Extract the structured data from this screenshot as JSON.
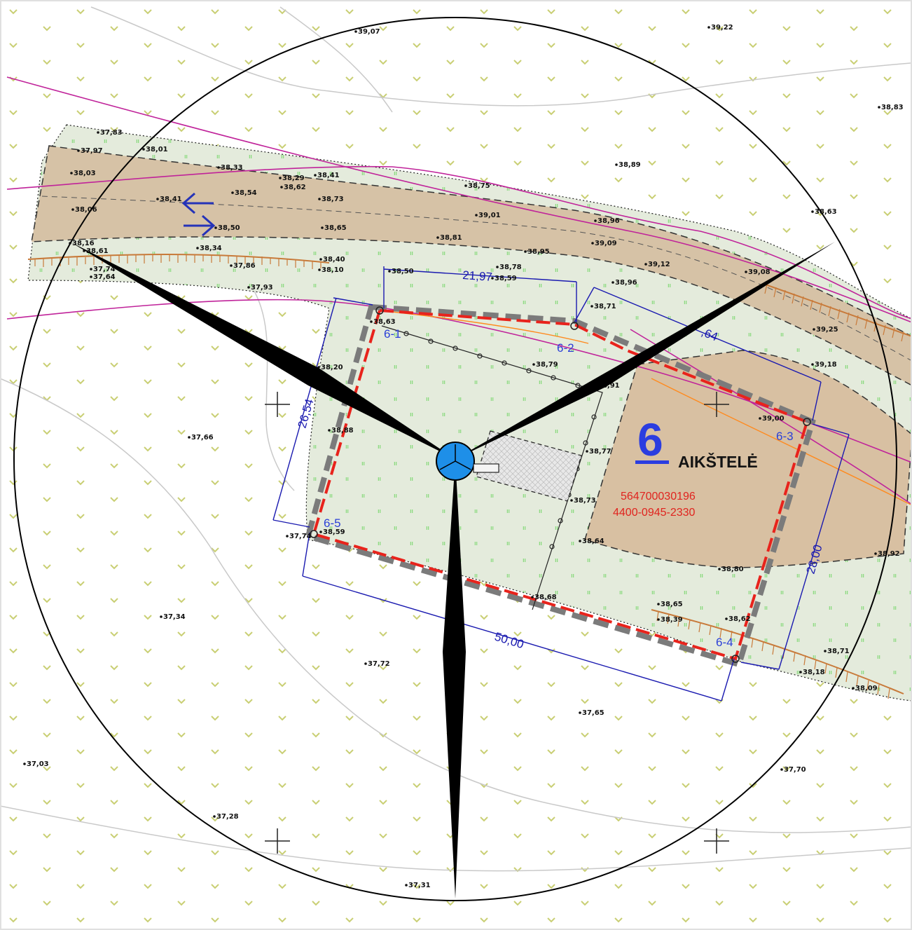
{
  "plot": {
    "number": "6",
    "name": "AIKŠTELĖ",
    "cadastral_number": "564700030196",
    "unique_number": "4400-0945-2330"
  },
  "dimensions": {
    "top": "21,97",
    "left": "26,54",
    "bottom": "50,00",
    "right": "28,00"
  },
  "corners": [
    "6-1",
    "6-2",
    "6-3",
    "6-4",
    "6-5"
  ],
  "elevations": [
    "39,07",
    "39,22",
    "38,83",
    "37,83",
    "37,97",
    "38,01",
    "38,03",
    "38,06",
    "38,33",
    "38,29",
    "38,41",
    "38,62",
    "38,54",
    "38,41",
    "38,73",
    "38,75",
    "38,89",
    "38,63",
    "38,50",
    "38,65",
    "39,01",
    "38,96",
    "38,81",
    "38,61",
    "38,16",
    "38,34",
    "38,40",
    "38,10",
    "37,86",
    "37,74",
    "37,64",
    "37,93",
    "38,50",
    "38,78",
    "38,59",
    "38,95",
    "39,09",
    "39,12",
    "38,96",
    "39,08",
    "38,71",
    "39,25",
    "39,18",
    "38,63",
    "38,79",
    "38,91",
    "39,00",
    "38,20",
    "37,66",
    "38,88",
    "38,77",
    "38,73",
    "38,64",
    "38,80",
    "38,92",
    "37,74",
    "38,59",
    "38,68",
    "38,65",
    "38,39",
    "38,62",
    "38,71",
    "38,18",
    "38,09",
    "37,34",
    "37,72",
    "37,65",
    "37,03",
    "37,70",
    "37,28",
    "37,31"
  ],
  "colors": {
    "plot_boundary": "#e8231c",
    "zone_boundary": "#7b7b7b",
    "dimension_lines": "#1a1ab0",
    "turbine": "#000000",
    "hub": "#1e8fe8",
    "power_line": "#c0239a",
    "parking_fill": "#d8c0a2",
    "road_fill": "#d6c2a6",
    "meadow_fill": "#e4ebdc"
  }
}
